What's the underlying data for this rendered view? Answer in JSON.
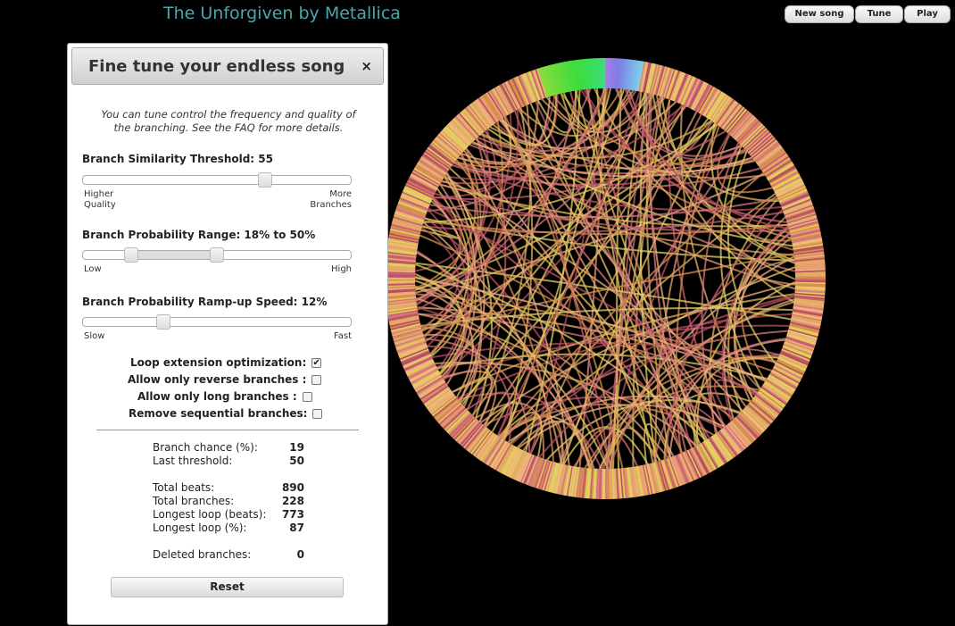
{
  "header": {
    "title": "The Unforgiven by Metallica",
    "buttons": [
      "New song",
      "Tune",
      "Play"
    ]
  },
  "panel": {
    "title": "Fine tune your endless song",
    "close": "×",
    "intro": "You can tune control the frequency and quality of the branching. See the FAQ for more details.",
    "similarity": {
      "label": "Branch Similarity Threshold: 55",
      "value": 55,
      "fraction": 0.68,
      "left": "Higher",
      "left2": "Quality",
      "right": "More",
      "right2": "Branches"
    },
    "probability": {
      "label": "Branch Probability Range: 18% to 50%",
      "low": 18,
      "high": 50,
      "left": "Low",
      "right": "High"
    },
    "ramp": {
      "label": "Branch Probability Ramp-up Speed: 12%",
      "value": 12,
      "fraction": 0.3,
      "left": "Slow",
      "right": "Fast"
    },
    "options": [
      {
        "label": "Loop extension optimization:",
        "checked": true
      },
      {
        "label": "Allow only reverse branches :",
        "checked": false
      },
      {
        "label": "Allow only long branches :",
        "checked": false
      },
      {
        "label": "Remove sequential branches:",
        "checked": false
      }
    ],
    "stats": [
      {
        "label": "Branch chance (%):",
        "value": "19"
      },
      {
        "label": "Last threshold:",
        "value": "50"
      },
      {
        "label": "Total beats:",
        "value": "890"
      },
      {
        "label": "Total branches:",
        "value": "228"
      },
      {
        "label": "Longest loop (beats):",
        "value": "773"
      },
      {
        "label": "Longest loop (%):",
        "value": "87"
      },
      {
        "label": "Deleted branches:",
        "value": "0"
      }
    ],
    "reset": "Reset"
  }
}
